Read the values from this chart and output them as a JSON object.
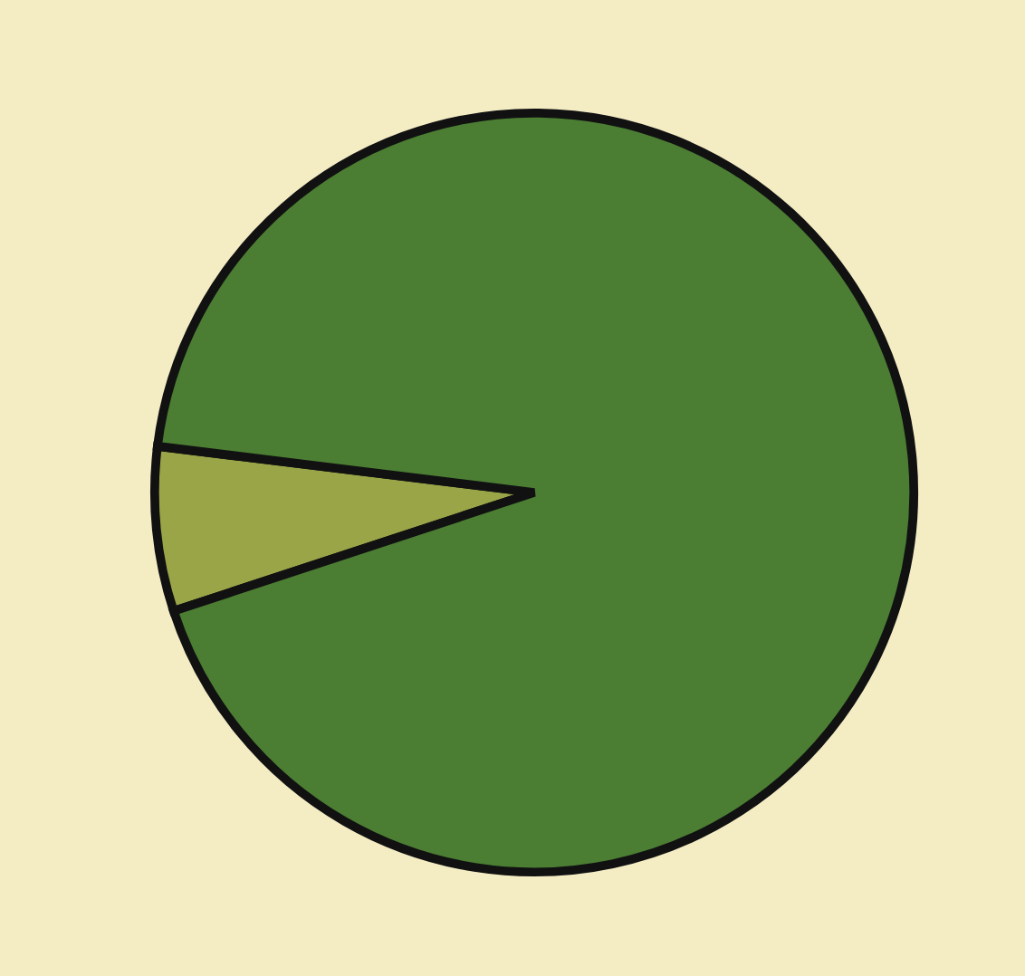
{
  "chart_data": {
    "type": "pie",
    "categories": [
      null,
      null
    ],
    "values": [
      7,
      93
    ],
    "colors": [
      "#9aa548",
      "#4b7d33"
    ]
  }
}
